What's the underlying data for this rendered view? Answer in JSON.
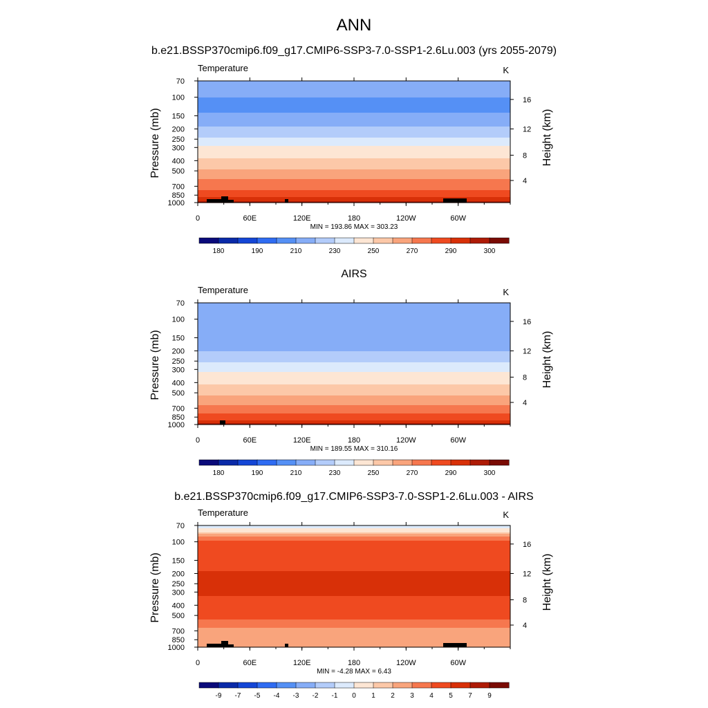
{
  "figure_title": "ANN",
  "chart_data": [
    {
      "type": "heatmap",
      "title": "b.e21.BSSP370cmip6.f09_g17.CMIP6-SSP3-7.0-SSP1-2.6Lu.003 (yrs 2055-2079)",
      "variable": "Temperature",
      "units": "K",
      "ylabel": "Pressure (mb)",
      "ylabel_right": "Height (km)",
      "x_ticks": [
        "0",
        "60E",
        "120E",
        "180",
        "120W",
        "60W"
      ],
      "y_ticks": [
        "70",
        "100",
        "150",
        "200",
        "250",
        "300",
        "400",
        "500",
        "700",
        "850",
        "1000"
      ],
      "height_ticks": [
        "4",
        "8",
        "12",
        "16"
      ],
      "stats": "MIN = 193.86  MAX = 303.23",
      "min": 193.86,
      "max": 303.23,
      "colorbar_labels": [
        "180",
        "190",
        "210",
        "230",
        "250",
        "270",
        "290",
        "300"
      ],
      "colorbar_colors": [
        "#0a0a7a",
        "#0a2aa8",
        "#1446d6",
        "#2f6cf2",
        "#5590f5",
        "#86adf7",
        "#b3ccfa",
        "#dceafc",
        "#fde6d4",
        "#fcc8a8",
        "#f9a47c",
        "#f6774e",
        "#ef4a20",
        "#d83008",
        "#ae1b06",
        "#7a0b04"
      ],
      "colorbar_values": [
        175,
        180,
        185,
        190,
        200,
        210,
        220,
        230,
        240,
        250,
        260,
        270,
        280,
        290,
        295,
        300,
        305
      ],
      "profile": [
        {
          "p": 70,
          "v": 212
        },
        {
          "p": 100,
          "v": 210
        },
        {
          "p": 125,
          "v": 205
        },
        {
          "p": 150,
          "v": 213
        },
        {
          "p": 175,
          "v": 218
        },
        {
          "p": 200,
          "v": 222
        },
        {
          "p": 250,
          "v": 232
        },
        {
          "p": 300,
          "v": 243
        },
        {
          "p": 400,
          "v": 252
        },
        {
          "p": 500,
          "v": 262
        },
        {
          "p": 600,
          "v": 270
        },
        {
          "p": 700,
          "v": 276
        },
        {
          "p": 850,
          "v": 286
        },
        {
          "p": 925,
          "v": 292
        },
        {
          "p": 1000,
          "v": 298
        }
      ]
    },
    {
      "type": "heatmap",
      "title": "AIRS",
      "variable": "Temperature",
      "units": "K",
      "ylabel": "Pressure (mb)",
      "ylabel_right": "Height (km)",
      "x_ticks": [
        "0",
        "60E",
        "120E",
        "180",
        "120W",
        "60W"
      ],
      "y_ticks": [
        "70",
        "100",
        "150",
        "200",
        "250",
        "300",
        "400",
        "500",
        "700",
        "850",
        "1000"
      ],
      "height_ticks": [
        "4",
        "8",
        "12",
        "16"
      ],
      "stats": "MIN = 189.55  MAX = 310.16",
      "min": 189.55,
      "max": 310.16,
      "colorbar_labels": [
        "180",
        "190",
        "210",
        "230",
        "250",
        "270",
        "290",
        "300"
      ],
      "colorbar_colors": [
        "#0a0a7a",
        "#0a2aa8",
        "#1446d6",
        "#2f6cf2",
        "#5590f5",
        "#86adf7",
        "#b3ccfa",
        "#dceafc",
        "#fde6d4",
        "#fcc8a8",
        "#f9a47c",
        "#f6774e",
        "#ef4a20",
        "#d83008",
        "#ae1b06",
        "#7a0b04"
      ],
      "colorbar_values": [
        175,
        180,
        185,
        190,
        200,
        210,
        220,
        230,
        240,
        250,
        260,
        270,
        280,
        290,
        295,
        300,
        305
      ],
      "profile": [
        {
          "p": 70,
          "v": 212
        },
        {
          "p": 100,
          "v": 210
        },
        {
          "p": 150,
          "v": 212
        },
        {
          "p": 175,
          "v": 216
        },
        {
          "p": 200,
          "v": 220
        },
        {
          "p": 250,
          "v": 228
        },
        {
          "p": 300,
          "v": 238
        },
        {
          "p": 400,
          "v": 248
        },
        {
          "p": 500,
          "v": 258
        },
        {
          "p": 600,
          "v": 266
        },
        {
          "p": 700,
          "v": 273
        },
        {
          "p": 850,
          "v": 284
        },
        {
          "p": 925,
          "v": 291
        },
        {
          "p": 1000,
          "v": 299
        }
      ]
    },
    {
      "type": "heatmap",
      "title": "b.e21.BSSP370cmip6.f09_g17.CMIP6-SSP3-7.0-SSP1-2.6Lu.003 - AIRS",
      "variable": "Temperature",
      "units": "K",
      "ylabel": "Pressure (mb)",
      "ylabel_right": "Height (km)",
      "x_ticks": [
        "0",
        "60E",
        "120E",
        "180",
        "120W",
        "60W"
      ],
      "y_ticks": [
        "70",
        "100",
        "150",
        "200",
        "250",
        "300",
        "400",
        "500",
        "700",
        "850",
        "1000"
      ],
      "height_ticks": [
        "4",
        "8",
        "12",
        "16"
      ],
      "stats": "MIN =  -4.28  MAX =   6.43",
      "min": -4.28,
      "max": 6.43,
      "colorbar_labels": [
        "-9",
        "-7",
        "-5",
        "-4",
        "-3",
        "-2",
        "-1",
        "0",
        "1",
        "2",
        "3",
        "4",
        "5",
        "7",
        "9"
      ],
      "colorbar_colors": [
        "#0a0a7a",
        "#0a2aa8",
        "#1446d6",
        "#2f6cf2",
        "#5590f5",
        "#86adf7",
        "#b3ccfa",
        "#dceafc",
        "#fde6d4",
        "#fcc8a8",
        "#f9a47c",
        "#f6774e",
        "#ef4a20",
        "#d83008",
        "#ae1b06",
        "#7a0b04"
      ],
      "colorbar_values": [
        -11,
        -9,
        -7,
        -5,
        -4,
        -3,
        -2,
        -1,
        0,
        1,
        2,
        3,
        4,
        5,
        7,
        9,
        11
      ],
      "profile": [
        {
          "p": 70,
          "v": -0.5
        },
        {
          "p": 80,
          "v": 0.8
        },
        {
          "p": 90,
          "v": 3.2
        },
        {
          "p": 100,
          "v": 4.2
        },
        {
          "p": 150,
          "v": 4.4
        },
        {
          "p": 200,
          "v": 5.1
        },
        {
          "p": 250,
          "v": 5.3
        },
        {
          "p": 300,
          "v": 5.2
        },
        {
          "p": 350,
          "v": 4.8
        },
        {
          "p": 400,
          "v": 4.6
        },
        {
          "p": 500,
          "v": 4.3
        },
        {
          "p": 600,
          "v": 3.6
        },
        {
          "p": 700,
          "v": 2.6
        },
        {
          "p": 850,
          "v": 2.3
        },
        {
          "p": 1000,
          "v": 2.7
        }
      ]
    }
  ]
}
